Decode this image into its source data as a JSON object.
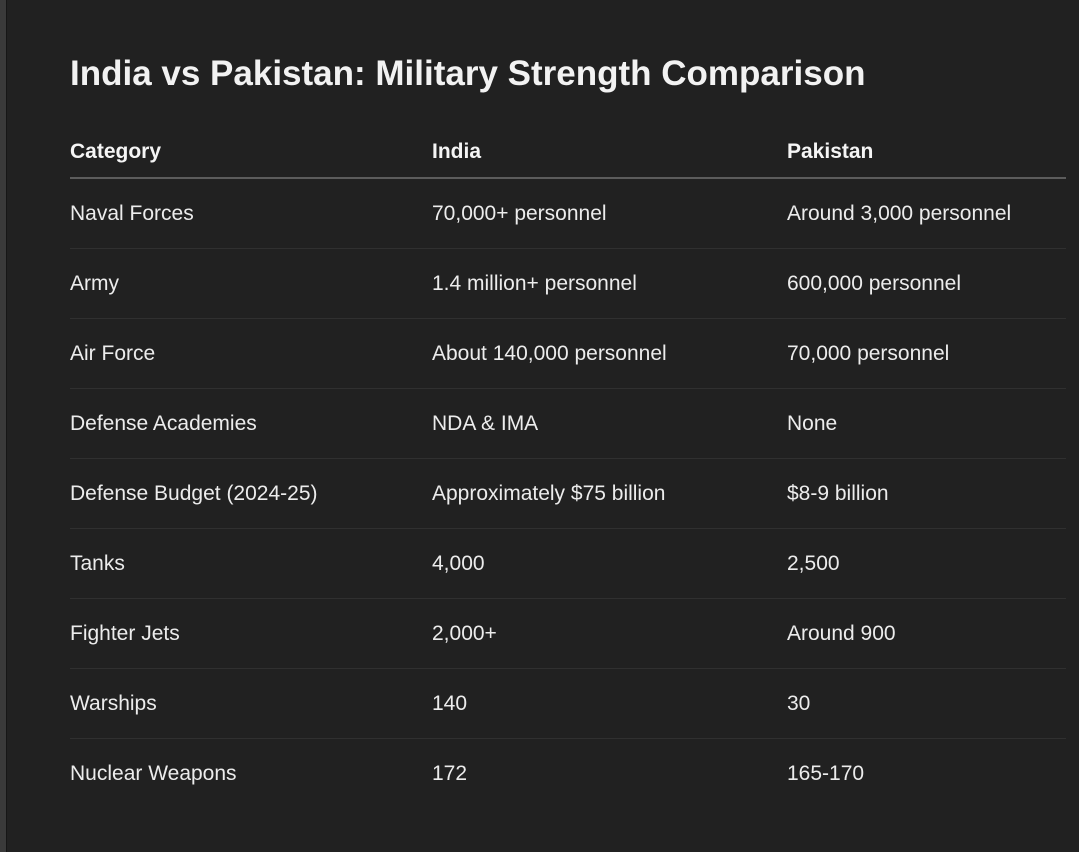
{
  "title": "India vs Pakistan: Military Strength Comparison",
  "table": {
    "headers": [
      "Category",
      "India",
      "Pakistan"
    ],
    "rows": [
      [
        "Naval Forces",
        "70,000+ personnel",
        "Around 3,000 personnel"
      ],
      [
        "Army",
        "1.4 million+ personnel",
        "600,000 personnel"
      ],
      [
        "Air Force",
        "About 140,000 personnel",
        "70,000 personnel"
      ],
      [
        "Defense Academies",
        "NDA & IMA",
        "None"
      ],
      [
        "Defense Budget (2024-25)",
        "Approximately $75 billion",
        "$8-9 billion"
      ],
      [
        "Tanks",
        "4,000",
        "2,500"
      ],
      [
        "Fighter Jets",
        "2,000+",
        "Around 900"
      ],
      [
        "Warships",
        "140",
        "30"
      ],
      [
        "Nuclear Weapons",
        "172",
        "165-170"
      ]
    ]
  },
  "colors": {
    "background": "#212121",
    "text": "#ececec",
    "header_rule": "#5c5c5c",
    "row_divider": "#303030"
  }
}
